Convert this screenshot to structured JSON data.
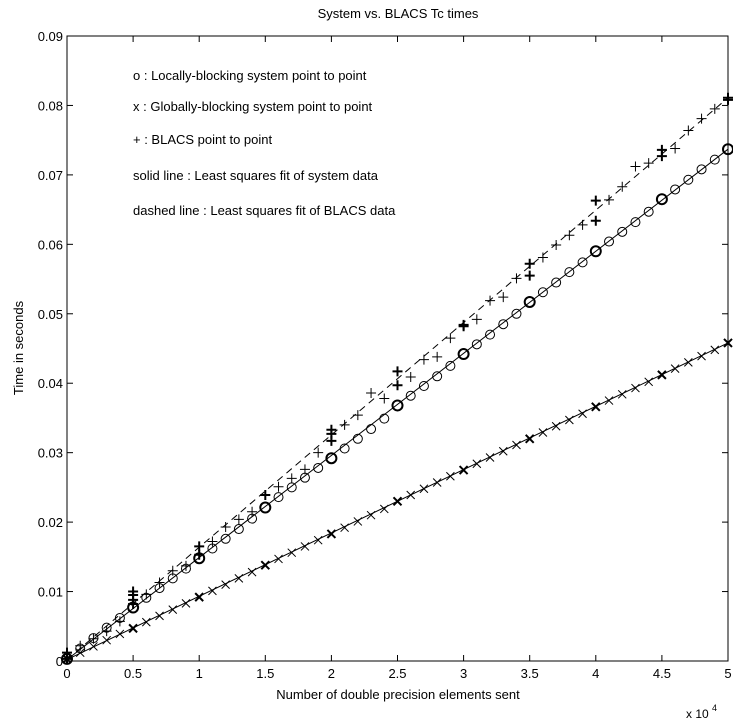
{
  "chart_data": {
    "type": "scatter",
    "title": "System vs. BLACS Tc times",
    "xlabel": "Number of double precision elements sent",
    "ylabel": "Time in seconds",
    "x_multiplier_label": "x 10",
    "x_multiplier_exponent": "4",
    "xlim": [
      0,
      50000
    ],
    "ylim": [
      0,
      0.09
    ],
    "xticks": [
      0,
      5000,
      10000,
      15000,
      20000,
      25000,
      30000,
      35000,
      40000,
      45000,
      50000
    ],
    "xtick_labels": [
      "0",
      "0.5",
      "1",
      "1.5",
      "2",
      "2.5",
      "3",
      "3.5",
      "4",
      "4.5",
      "5"
    ],
    "yticks": [
      0,
      0.01,
      0.02,
      0.03,
      0.04,
      0.05,
      0.06,
      0.07,
      0.08,
      0.09
    ],
    "ytick_labels": [
      "0",
      "0.01",
      "0.02",
      "0.03",
      "0.04",
      "0.05",
      "0.06",
      "0.07",
      "0.08",
      "0.09"
    ],
    "grid": false,
    "legend_position": "top-left",
    "annotations": [
      "o : Locally-blocking system point to point",
      "x : Globally-blocking system point to point",
      "+ : BLACS point to point",
      "solid line : Least squares fit of system data",
      "dashed line : Least squares fit of BLACS data"
    ],
    "series": [
      {
        "marker": "o",
        "x": [
          0,
          1000,
          2000,
          3000,
          4000,
          5000,
          6000,
          7000,
          8000,
          9000,
          10000,
          11000,
          12000,
          13000,
          14000,
          15000,
          16000,
          17000,
          18000,
          19000,
          20000,
          21000,
          22000,
          23000,
          24000,
          25000,
          26000,
          27000,
          28000,
          29000,
          30000,
          31000,
          32000,
          33000,
          34000,
          35000,
          36000,
          37000,
          38000,
          39000,
          40000,
          41000,
          42000,
          43000,
          44000,
          45000,
          46000,
          47000,
          48000,
          49000,
          50000
        ],
        "y": [
          0.0003,
          0.0018,
          0.0033,
          0.0048,
          0.0062,
          0.0077,
          0.0091,
          0.0105,
          0.0119,
          0.0133,
          0.0148,
          0.0162,
          0.0176,
          0.019,
          0.0205,
          0.0221,
          0.0236,
          0.025,
          0.0264,
          0.0278,
          0.0292,
          0.0306,
          0.032,
          0.0334,
          0.0349,
          0.0368,
          0.0382,
          0.0396,
          0.041,
          0.0425,
          0.0442,
          0.0456,
          0.047,
          0.0485,
          0.05,
          0.0517,
          0.0531,
          0.0545,
          0.056,
          0.0574,
          0.059,
          0.0604,
          0.0618,
          0.0632,
          0.0647,
          0.0665,
          0.0679,
          0.0693,
          0.0708,
          0.0722,
          0.0737
        ]
      },
      {
        "marker": "x",
        "x": [
          0,
          1000,
          2000,
          3000,
          4000,
          5000,
          6000,
          7000,
          8000,
          9000,
          10000,
          11000,
          12000,
          13000,
          14000,
          15000,
          16000,
          17000,
          18000,
          19000,
          20000,
          21000,
          22000,
          23000,
          24000,
          25000,
          26000,
          27000,
          28000,
          29000,
          30000,
          31000,
          32000,
          33000,
          34000,
          35000,
          36000,
          37000,
          38000,
          39000,
          40000,
          41000,
          42000,
          43000,
          44000,
          45000,
          46000,
          47000,
          48000,
          49000,
          50000
        ],
        "y": [
          0.0003,
          0.0012,
          0.0021,
          0.003,
          0.0039,
          0.0047,
          0.0056,
          0.0065,
          0.0074,
          0.0083,
          0.0092,
          0.0101,
          0.011,
          0.0119,
          0.0128,
          0.0138,
          0.0147,
          0.0156,
          0.0165,
          0.0174,
          0.0183,
          0.0192,
          0.0201,
          0.021,
          0.0219,
          0.023,
          0.0239,
          0.0248,
          0.0257,
          0.0266,
          0.0275,
          0.0284,
          0.0293,
          0.0302,
          0.0311,
          0.032,
          0.0329,
          0.0338,
          0.0347,
          0.0356,
          0.0366,
          0.0375,
          0.0384,
          0.0393,
          0.0402,
          0.0412,
          0.0421,
          0.043,
          0.0439,
          0.0448,
          0.0458
        ]
      },
      {
        "marker": "+",
        "x": [
          0,
          0,
          1000,
          2000,
          3000,
          4000,
          5000,
          5000,
          5000,
          5000,
          6000,
          7000,
          8000,
          9000,
          10000,
          10000,
          11000,
          12000,
          13000,
          14000,
          15000,
          16000,
          17000,
          18000,
          19000,
          20000,
          20000,
          20000,
          21000,
          22000,
          23000,
          24000,
          25000,
          25000,
          26000,
          27000,
          28000,
          29000,
          30000,
          30000,
          31000,
          32000,
          33000,
          34000,
          35000,
          35000,
          36000,
          37000,
          38000,
          39000,
          40000,
          40000,
          41000,
          42000,
          43000,
          44000,
          45000,
          45000,
          46000,
          47000,
          48000,
          49000,
          50000,
          50000
        ],
        "y": [
          0.0003,
          0.0012,
          0.0022,
          0.0032,
          0.0043,
          0.0057,
          0.0082,
          0.0088,
          0.0095,
          0.01,
          0.0096,
          0.0113,
          0.013,
          0.0137,
          0.0153,
          0.0165,
          0.0172,
          0.0193,
          0.0204,
          0.0215,
          0.0239,
          0.0251,
          0.0263,
          0.0276,
          0.03,
          0.0317,
          0.0327,
          0.0333,
          0.034,
          0.0354,
          0.0386,
          0.0378,
          0.0397,
          0.0417,
          0.0409,
          0.0434,
          0.0438,
          0.0465,
          0.0482,
          0.0484,
          0.0492,
          0.0519,
          0.0524,
          0.0551,
          0.0555,
          0.0572,
          0.0581,
          0.0599,
          0.0613,
          0.0628,
          0.0634,
          0.0663,
          0.0664,
          0.0683,
          0.0712,
          0.0717,
          0.0727,
          0.0736,
          0.0738,
          0.0764,
          0.0781,
          0.0795,
          0.0808,
          0.0811
        ]
      }
    ],
    "fits": [
      {
        "style": "solid",
        "fit_of": "system data",
        "x": [
          0,
          50000
        ],
        "y": [
          0.0002,
          0.0737
        ]
      },
      {
        "style": "solid",
        "fit_of": "system data",
        "x": [
          0,
          50000
        ],
        "y": [
          0.0002,
          0.0458
        ]
      },
      {
        "style": "dashed",
        "fit_of": "BLACS data",
        "x": [
          0,
          50000
        ],
        "y": [
          0.0002,
          0.0811
        ]
      }
    ]
  }
}
